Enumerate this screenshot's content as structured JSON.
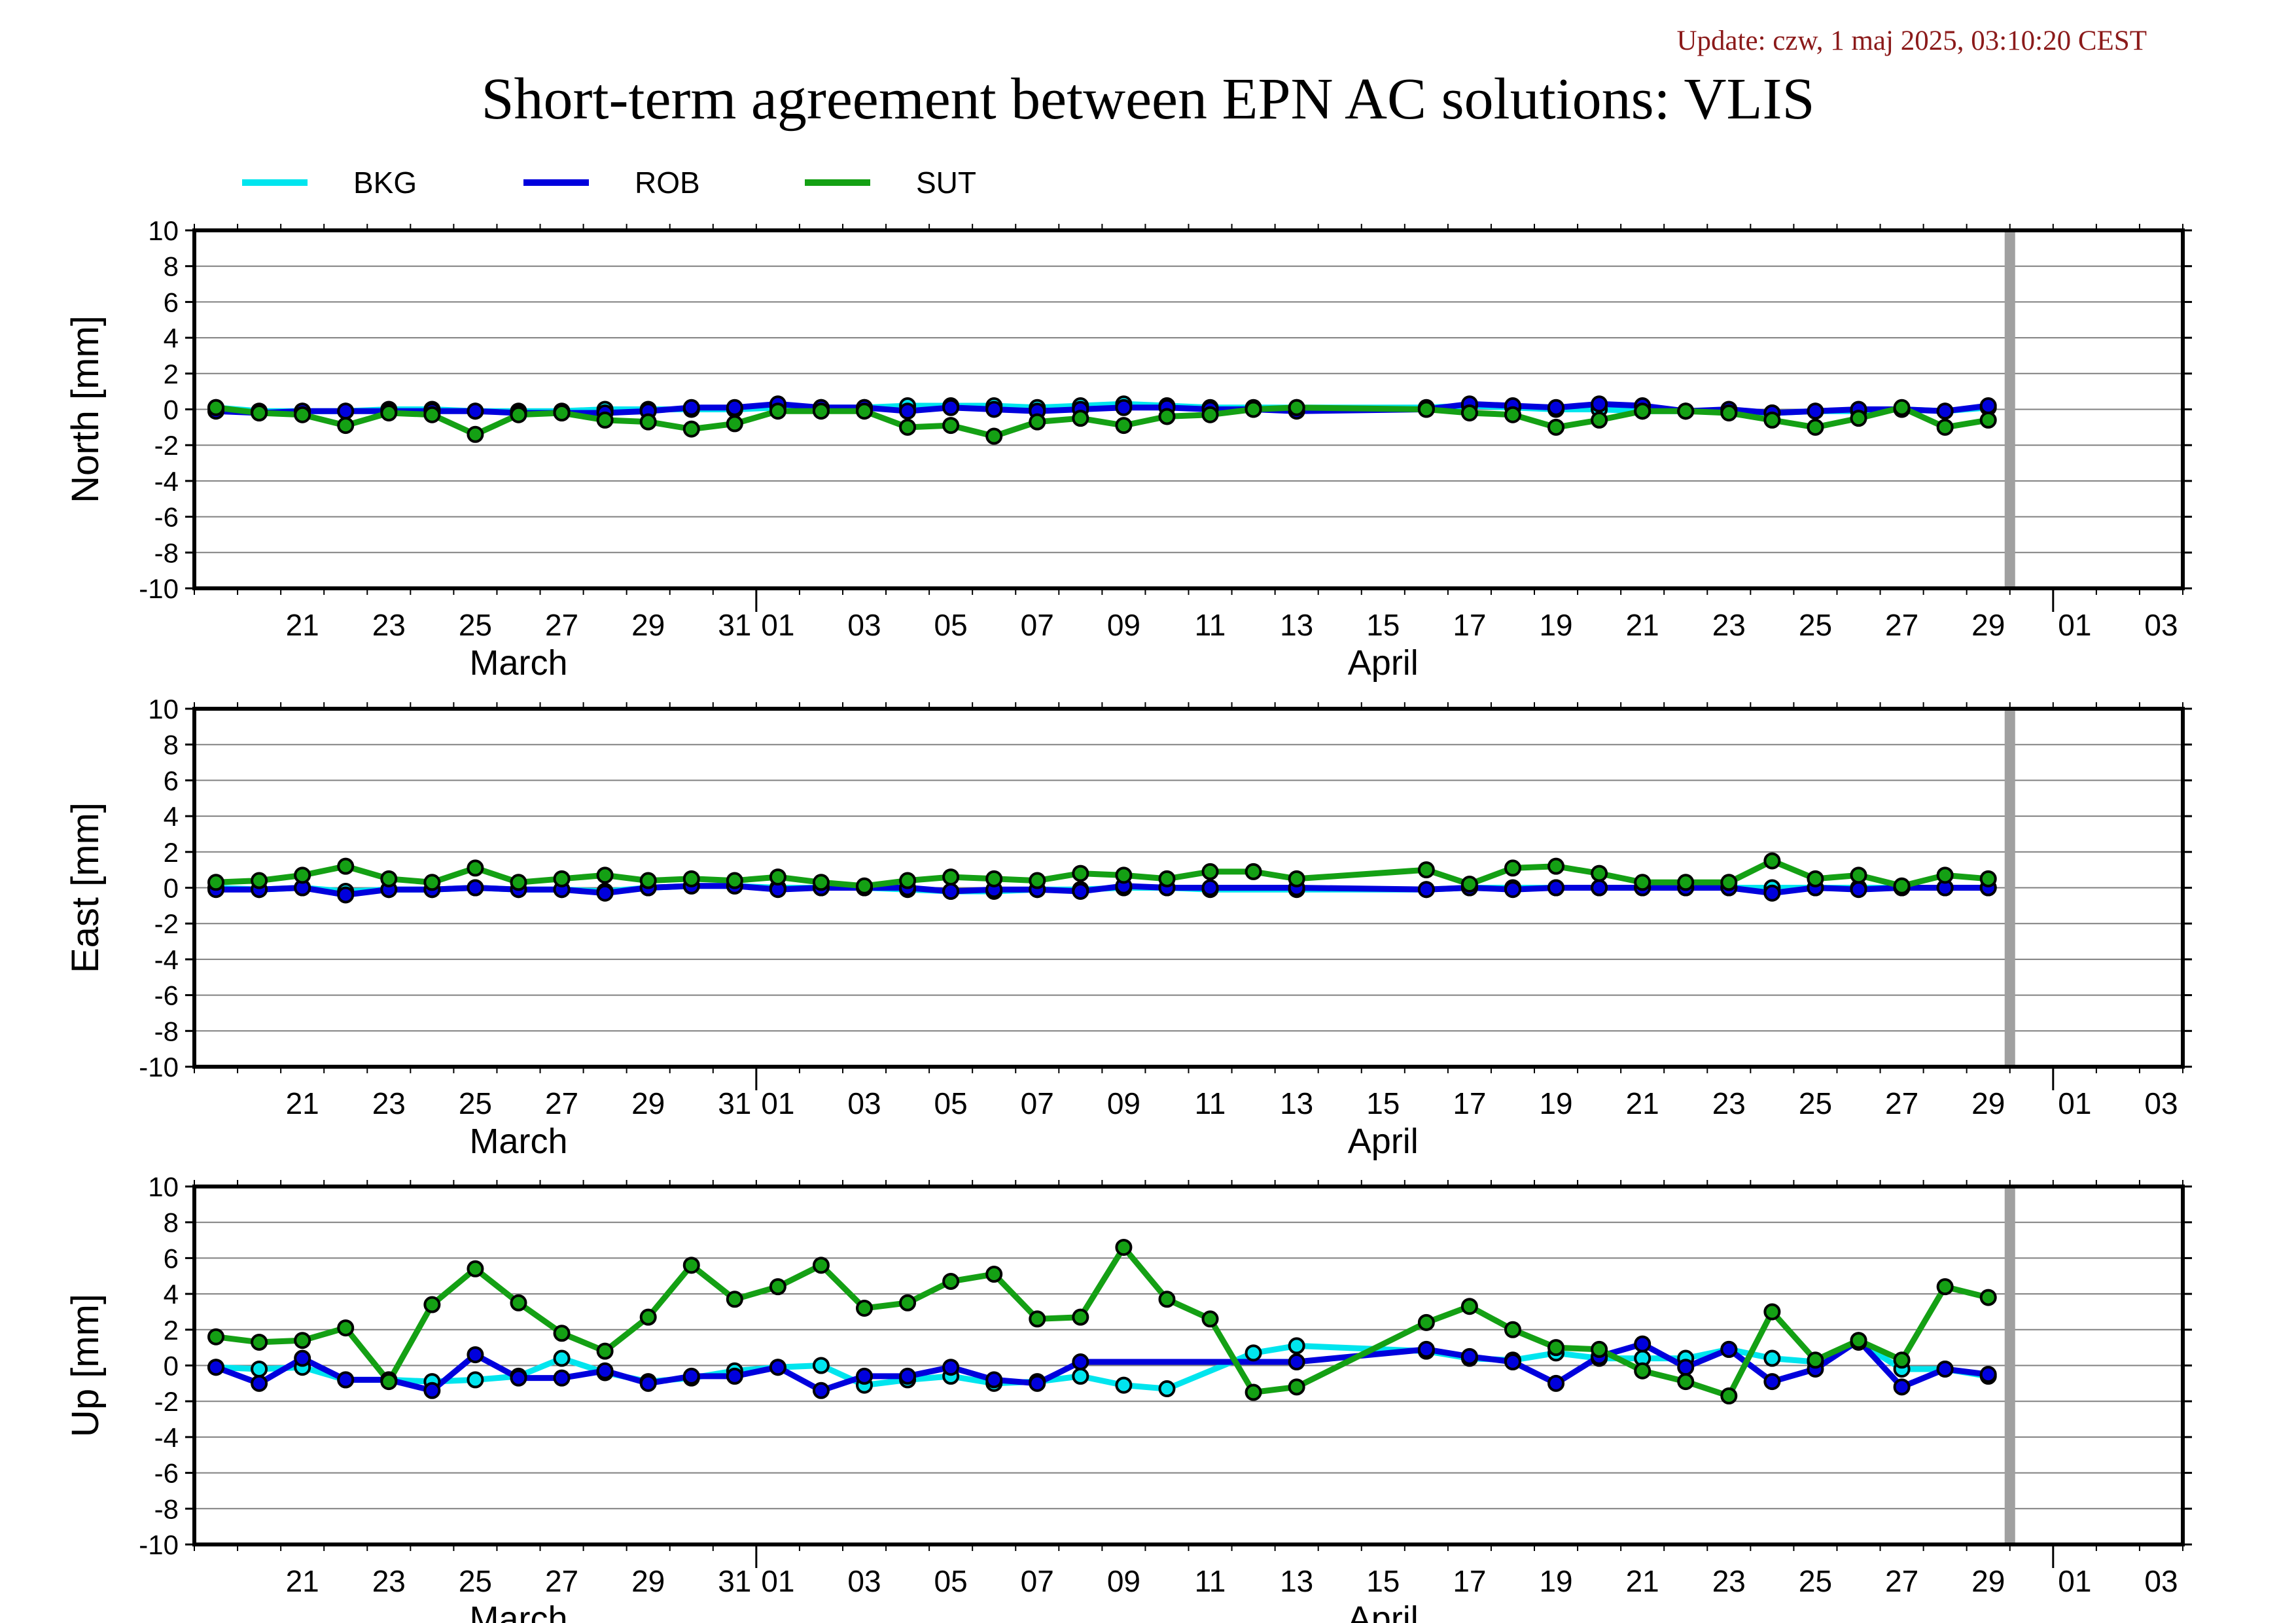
{
  "update_text": "Update: czw, 1 maj 2025, 03:10:20 CEST",
  "chart_data": {
    "type": "line",
    "title": "Short-term agreement between EPN AC solutions: VLIS",
    "legend": {
      "placement": "top-left",
      "entries": [
        "BKG",
        "ROB",
        "SUT"
      ]
    },
    "colors": {
      "BKG": "#00e5ee",
      "ROB": "#0000dd",
      "SUT": "#14a014",
      "marker_edge": "#000000",
      "grid": "#808080",
      "today_bar": "#a0a0a0"
    },
    "x_axis": {
      "type": "date",
      "range": [
        "2025-03-19",
        "2025-05-04"
      ],
      "tick_labels": [
        "21",
        "23",
        "25",
        "27",
        "29",
        "31",
        "01",
        "03",
        "05",
        "07",
        "09",
        "11",
        "13",
        "15",
        "17",
        "19",
        "21",
        "23",
        "25",
        "27",
        "29",
        "01",
        "03"
      ],
      "month_labels": [
        "March",
        "April"
      ],
      "current_date_marker": "2025-04-30"
    },
    "x": [
      "2025-03-19",
      "2025-03-20",
      "2025-03-21",
      "2025-03-22",
      "2025-03-23",
      "2025-03-24",
      "2025-03-25",
      "2025-03-26",
      "2025-03-27",
      "2025-03-28",
      "2025-03-29",
      "2025-03-30",
      "2025-03-31",
      "2025-04-01",
      "2025-04-02",
      "2025-04-03",
      "2025-04-04",
      "2025-04-05",
      "2025-04-06",
      "2025-04-07",
      "2025-04-08",
      "2025-04-09",
      "2025-04-10",
      "2025-04-11",
      "2025-04-12",
      "2025-04-13",
      "2025-04-14",
      "2025-04-15",
      "2025-04-16",
      "2025-04-17",
      "2025-04-18",
      "2025-04-19",
      "2025-04-20",
      "2025-04-21",
      "2025-04-22",
      "2025-04-23",
      "2025-04-24",
      "2025-04-25",
      "2025-04-26",
      "2025-04-27",
      "2025-04-28",
      "2025-04-29"
    ],
    "panels": [
      {
        "ylabel": "North [mm]",
        "ylim": [
          -10,
          10
        ],
        "yticks": [
          10,
          8,
          6,
          4,
          2,
          0,
          -2,
          -4,
          -6,
          -8,
          -10
        ],
        "grid": true,
        "series": [
          {
            "name": "BKG",
            "values": [
              0.1,
              -0.1,
              -0.1,
              -0.1,
              0.0,
              0.0,
              -0.1,
              -0.1,
              -0.1,
              0.0,
              0.0,
              0.0,
              0.0,
              0.1,
              0.1,
              0.1,
              0.2,
              0.2,
              0.2,
              0.1,
              0.2,
              0.3,
              0.2,
              0.1,
              0.1,
              0.1,
              null,
              null,
              0.1,
              0.2,
              0.1,
              0.0,
              0.0,
              -0.1,
              -0.1,
              -0.1,
              -0.2,
              -0.1,
              -0.1,
              0.0,
              -0.1,
              0.1
            ]
          },
          {
            "name": "ROB",
            "values": [
              -0.1,
              -0.2,
              -0.1,
              -0.1,
              -0.1,
              -0.1,
              -0.1,
              -0.2,
              -0.2,
              -0.2,
              -0.1,
              0.1,
              0.1,
              0.3,
              0.1,
              0.1,
              -0.1,
              0.1,
              0.0,
              -0.1,
              0.0,
              0.1,
              0.1,
              0.0,
              0.0,
              -0.1,
              null,
              null,
              0.0,
              0.3,
              0.2,
              0.1,
              0.3,
              0.2,
              -0.1,
              0.0,
              -0.2,
              -0.1,
              0.0,
              0.0,
              -0.1,
              0.2
            ]
          },
          {
            "name": "SUT",
            "values": [
              0.1,
              -0.2,
              -0.3,
              -0.9,
              -0.2,
              -0.3,
              -1.4,
              -0.3,
              -0.2,
              -0.6,
              -0.7,
              -1.1,
              -0.8,
              -0.1,
              -0.1,
              -0.1,
              -1.0,
              -0.9,
              -1.5,
              -0.7,
              -0.5,
              -0.9,
              -0.4,
              -0.3,
              0.0,
              0.1,
              null,
              null,
              0.0,
              -0.2,
              -0.3,
              -1.0,
              -0.6,
              -0.1,
              -0.1,
              -0.2,
              -0.6,
              -1.0,
              -0.5,
              0.1,
              -1.0,
              -0.6
            ]
          }
        ]
      },
      {
        "ylabel": "East [mm]",
        "ylim": [
          -10,
          10
        ],
        "yticks": [
          10,
          8,
          6,
          4,
          2,
          0,
          -2,
          -4,
          -6,
          -8,
          -10
        ],
        "grid": true,
        "series": [
          {
            "name": "BKG",
            "values": [
              0.0,
              -0.1,
              0.0,
              -0.2,
              -0.1,
              -0.1,
              0.0,
              -0.1,
              -0.1,
              -0.2,
              0.0,
              0.1,
              0.1,
              0.0,
              0.0,
              0.0,
              -0.1,
              -0.2,
              -0.2,
              -0.1,
              -0.1,
              0.0,
              0.0,
              -0.1,
              null,
              -0.1,
              null,
              null,
              -0.1,
              0.0,
              0.0,
              0.0,
              0.0,
              0.0,
              0.0,
              0.0,
              0.0,
              0.0,
              0.0,
              0.0,
              0.0,
              0.0
            ]
          },
          {
            "name": "ROB",
            "values": [
              -0.1,
              -0.1,
              0.0,
              -0.4,
              -0.1,
              -0.1,
              0.0,
              -0.1,
              -0.1,
              -0.3,
              0.0,
              0.1,
              0.1,
              -0.1,
              0.0,
              0.0,
              0.0,
              -0.2,
              -0.1,
              -0.1,
              -0.2,
              0.1,
              0.0,
              0.0,
              null,
              0.0,
              null,
              null,
              -0.1,
              0.0,
              -0.1,
              0.0,
              0.0,
              0.0,
              0.0,
              0.0,
              -0.3,
              0.0,
              -0.1,
              0.0,
              0.0,
              0.0
            ]
          },
          {
            "name": "SUT",
            "values": [
              0.3,
              0.4,
              0.7,
              1.2,
              0.5,
              0.3,
              1.1,
              0.3,
              0.5,
              0.7,
              0.4,
              0.5,
              0.4,
              0.6,
              0.3,
              0.1,
              0.4,
              0.6,
              0.5,
              0.4,
              0.8,
              0.7,
              0.5,
              0.9,
              0.9,
              0.5,
              null,
              null,
              1.0,
              0.2,
              1.1,
              1.2,
              0.8,
              0.3,
              0.3,
              0.3,
              1.5,
              0.5,
              0.7,
              0.1,
              0.7,
              0.5
            ]
          }
        ]
      },
      {
        "ylabel": "Up [mm]",
        "ylim": [
          -10,
          10
        ],
        "yticks": [
          10,
          8,
          6,
          4,
          2,
          0,
          -2,
          -4,
          -6,
          -8,
          -10
        ],
        "grid": true,
        "series": [
          {
            "name": "BKG",
            "values": [
              -0.1,
              -0.2,
              -0.1,
              -0.8,
              -0.8,
              -0.9,
              -0.8,
              -0.6,
              0.4,
              -0.4,
              -0.9,
              -0.7,
              -0.3,
              -0.1,
              0.0,
              -1.1,
              -0.8,
              -0.6,
              -1.0,
              -0.9,
              -0.6,
              -1.1,
              -1.3,
              null,
              0.7,
              1.1,
              null,
              null,
              0.8,
              0.4,
              0.3,
              0.7,
              0.4,
              0.4,
              0.4,
              0.9,
              0.4,
              0.2,
              1.3,
              -0.2,
              -0.2,
              -0.6
            ]
          },
          {
            "name": "ROB",
            "values": [
              -0.1,
              -1.0,
              0.4,
              -0.8,
              -0.8,
              -1.4,
              0.6,
              -0.7,
              -0.7,
              -0.3,
              -1.0,
              -0.6,
              -0.6,
              -0.1,
              -1.4,
              -0.6,
              -0.6,
              -0.1,
              -0.8,
              -1.0,
              0.2,
              null,
              null,
              null,
              null,
              0.2,
              null,
              null,
              0.9,
              0.5,
              0.2,
              -1.0,
              0.5,
              1.2,
              -0.1,
              0.9,
              -0.9,
              -0.2,
              1.4,
              -1.2,
              -0.2,
              -0.5
            ]
          },
          {
            "name": "SUT",
            "values": [
              1.6,
              1.3,
              1.4,
              2.1,
              -0.9,
              3.4,
              5.4,
              3.5,
              1.8,
              0.8,
              2.7,
              5.6,
              3.7,
              4.4,
              5.6,
              3.2,
              3.5,
              4.7,
              5.1,
              2.6,
              2.7,
              6.6,
              3.7,
              2.6,
              -1.5,
              -1.2,
              null,
              null,
              2.4,
              3.3,
              2.0,
              1.0,
              0.9,
              -0.3,
              -0.9,
              -1.7,
              3.0,
              0.3,
              1.4,
              0.3,
              4.4,
              3.8
            ]
          }
        ]
      }
    ]
  }
}
